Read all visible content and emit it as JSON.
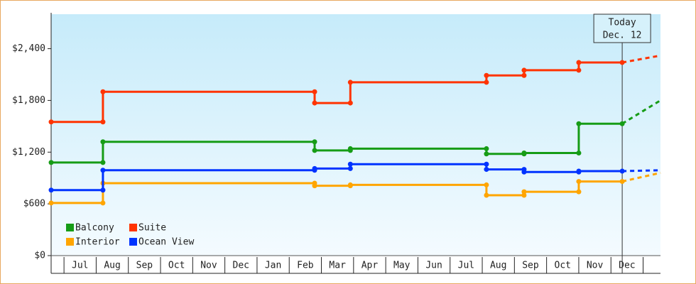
{
  "chart_data": {
    "type": "step-line",
    "categories": [
      "Jul",
      "Aug",
      "Sep",
      "Oct",
      "Nov",
      "Dec",
      "Jan",
      "Feb",
      "Mar",
      "Apr",
      "May",
      "Jun",
      "Jul",
      "Aug",
      "Sep",
      "Oct",
      "Nov",
      "Dec"
    ],
    "x": [
      -0.4,
      1.21,
      1.21,
      7.79,
      7.79,
      8.9,
      8.9,
      13.13,
      13.13,
      14.3,
      14.3,
      16.0,
      16.0,
      17.35
    ],
    "forecast_x": [
      17.35,
      18.54
    ],
    "xlim": [
      -0.4,
      18.54
    ],
    "ylim": [
      0,
      2800
    ],
    "yticks": [
      {
        "value": 0,
        "label": "$0"
      },
      {
        "value": 600,
        "label": "$600"
      },
      {
        "value": 1200,
        "label": "$1,200"
      },
      {
        "value": 1800,
        "label": "$1,800"
      },
      {
        "value": 2400,
        "label": "$2,400"
      }
    ],
    "grid": false,
    "legend": "bottom-left",
    "annotation": {
      "text": [
        "Today",
        "Dec. 12"
      ],
      "x": 17.35
    },
    "series": [
      {
        "name": "Balcony",
        "color": "#169c16",
        "values": [
          1080,
          1080,
          1320,
          1320,
          1220,
          1220,
          1240,
          1240,
          1180,
          1180,
          1190,
          1190,
          1530,
          1530
        ],
        "forecast_values": [
          1530,
          1800
        ]
      },
      {
        "name": "Suite",
        "color": "#ff3300",
        "values": [
          1550,
          1550,
          1900,
          1900,
          1770,
          1770,
          2010,
          2010,
          2090,
          2090,
          2150,
          2150,
          2240,
          2240
        ],
        "forecast_values": [
          2240,
          2320
        ]
      },
      {
        "name": "Interior",
        "color": "#ffa500",
        "values": [
          610,
          610,
          840,
          840,
          810,
          810,
          820,
          820,
          700,
          700,
          740,
          740,
          860,
          860
        ],
        "forecast_values": [
          860,
          960
        ]
      },
      {
        "name": "Ocean View",
        "color": "#0033ff",
        "values": [
          760,
          760,
          990,
          990,
          1010,
          1010,
          1060,
          1060,
          1000,
          1000,
          970,
          970,
          980,
          980
        ],
        "forecast_values": [
          980,
          990
        ]
      }
    ]
  }
}
